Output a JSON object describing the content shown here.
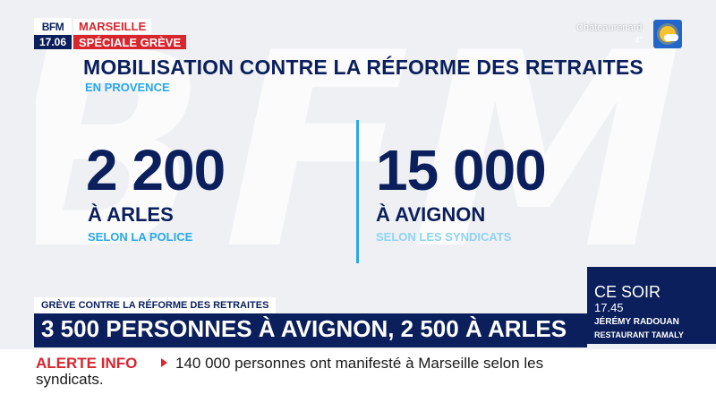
{
  "channel": {
    "logo": "BFM",
    "clock": "17.06",
    "city": "MARSEILLE",
    "special": "SPÉCIALE GRÈVE"
  },
  "weather": {
    "city": "Châteaurenard",
    "temp": "4°",
    "icon": "sun-cloud-icon"
  },
  "graphic": {
    "title": "MOBILISATION CONTRE LA RÉFORME DES RETRAITES",
    "subtitle": "EN PROVENCE",
    "left": {
      "number": "2 200",
      "place": "À ARLES",
      "source": "SELON LA POLICE"
    },
    "right": {
      "number": "15 000",
      "place": "À AVIGNON",
      "source": "SELON LES SYNDICATS"
    }
  },
  "promo": {
    "label": "CE SOIR",
    "time": "17.45",
    "person": "JÉRÉMY RADOUAN",
    "place": "RESTAURANT TAMALY"
  },
  "lower_third": {
    "label": "GRÈVE CONTRE LA RÉFORME DES RETRAITES",
    "headline": "3 500 PERSONNES À AVIGNON, 2 500 À ARLES"
  },
  "ticker": {
    "alert": "ALERTE INFO",
    "text_line1": "140 000 personnes ont manifesté à Marseille selon les",
    "text_line2": "syndicats."
  },
  "colors": {
    "navy": "#0a1f5c",
    "red": "#d8262e",
    "cyan": "#2aa8e8"
  }
}
